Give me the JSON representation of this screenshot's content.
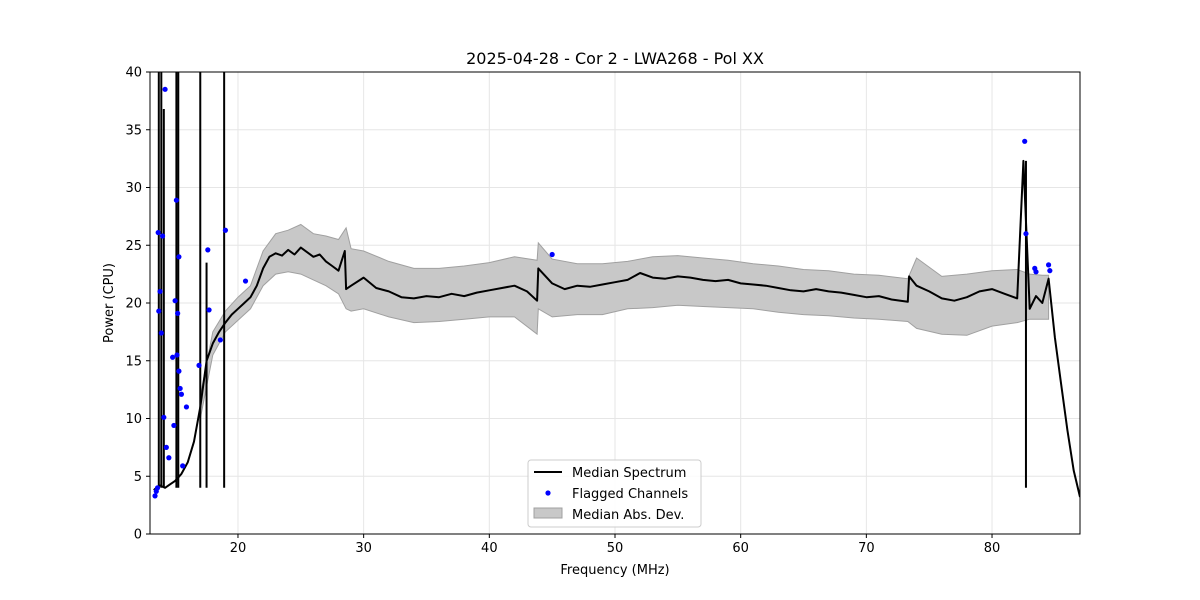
{
  "chart_data": {
    "type": "line",
    "title": "2025-04-28 - Cor 2 - LWA268 - Pol XX",
    "xlabel": "Frequency (MHz)",
    "ylabel": "Power (CPU)",
    "xlim": [
      13,
      87
    ],
    "ylim": [
      0,
      40
    ],
    "xticks": [
      20,
      30,
      40,
      50,
      60,
      70,
      80
    ],
    "yticks": [
      0,
      5,
      10,
      15,
      20,
      25,
      30,
      35,
      40
    ],
    "grid": true,
    "legend_position": "bottom-center",
    "legend": [
      "Median Spectrum",
      "Flagged Channels",
      "Median Abs. Dev."
    ],
    "colors": {
      "median": "#000000",
      "flagged": "#0000ff",
      "band_fill": "#c8c8c8",
      "band_edge": "#a0a0a0",
      "grid": "#e6e6e6"
    },
    "median_spectrum": {
      "x": [
        13.3,
        13.5,
        13.8,
        14.2,
        14.6,
        15.0,
        15.5,
        16.0,
        16.5,
        17.0,
        17.5,
        18.0,
        18.5,
        19.0,
        19.5,
        20.0,
        20.5,
        21.0,
        21.5,
        22.0,
        22.5,
        23.0,
        23.5,
        24.0,
        24.5,
        25.0,
        25.5,
        26.0,
        26.5,
        27.0,
        27.5,
        28.0,
        28.5,
        28.6,
        29.0,
        30.0,
        31.0,
        32.0,
        33.0,
        34.0,
        35.0,
        36.0,
        37.0,
        38.0,
        39.0,
        40.0,
        41.0,
        42.0,
        43.0,
        43.8,
        43.9,
        45.0,
        46.0,
        47.0,
        48.0,
        49.0,
        50.0,
        51.0,
        52.0,
        53.0,
        54.0,
        55.0,
        56.0,
        57.0,
        58.0,
        59.0,
        60.0,
        61.0,
        62.0,
        63.0,
        64.0,
        65.0,
        66.0,
        67.0,
        68.0,
        69.0,
        70.0,
        71.0,
        72.0,
        73.3,
        73.4,
        74.0,
        75.0,
        76.0,
        77.0,
        78.0,
        79.0,
        80.0,
        81.0,
        82.0,
        82.5,
        83.0,
        83.5,
        84.0,
        84.5,
        85.0,
        85.5,
        86.0,
        86.5,
        87.0
      ],
      "y": [
        3.8,
        4.0,
        4.2,
        4.0,
        4.3,
        4.6,
        5.2,
        6.2,
        8.0,
        11.0,
        15.0,
        16.5,
        17.5,
        18.3,
        19.0,
        19.5,
        20.0,
        20.5,
        21.5,
        23.0,
        24.0,
        24.3,
        24.1,
        24.6,
        24.2,
        24.8,
        24.4,
        24.0,
        24.2,
        23.6,
        23.2,
        22.8,
        24.5,
        21.2,
        21.5,
        22.2,
        21.3,
        21.0,
        20.5,
        20.4,
        20.6,
        20.5,
        20.8,
        20.6,
        20.9,
        21.1,
        21.3,
        21.5,
        21.0,
        20.2,
        23.0,
        21.7,
        21.2,
        21.5,
        21.4,
        21.6,
        21.8,
        22.0,
        22.6,
        22.2,
        22.1,
        22.3,
        22.2,
        22.0,
        21.9,
        22.0,
        21.7,
        21.6,
        21.5,
        21.3,
        21.1,
        21.0,
        21.2,
        21.0,
        20.9,
        20.7,
        20.5,
        20.6,
        20.3,
        20.1,
        22.3,
        21.5,
        21.0,
        20.4,
        20.2,
        20.5,
        21.0,
        21.2,
        20.8,
        20.4,
        32.3,
        19.5,
        20.6,
        20.0,
        22.1,
        17.0,
        13.0,
        9.0,
        5.5,
        3.2
      ]
    },
    "mad_band": {
      "x": [
        17.0,
        18.0,
        19.0,
        20.0,
        21.0,
        22.0,
        23.0,
        24.0,
        25.0,
        26.0,
        27.0,
        28.0,
        28.6,
        29.0,
        30.0,
        32.0,
        34.0,
        36.0,
        38.0,
        40.0,
        42.0,
        43.8,
        43.9,
        45.0,
        47.0,
        49.0,
        51.0,
        53.0,
        55.0,
        57.0,
        59.0,
        61.0,
        63.0,
        65.0,
        67.0,
        69.0,
        71.0,
        73.3,
        74.0,
        76.0,
        78.0,
        80.0,
        82.0,
        83.0,
        84.0,
        84.5
      ],
      "upper": [
        12.0,
        17.5,
        19.3,
        20.5,
        21.5,
        24.5,
        26.0,
        26.3,
        26.8,
        26.0,
        25.8,
        25.5,
        26.5,
        24.7,
        24.5,
        23.6,
        23.0,
        23.0,
        23.2,
        23.5,
        24.0,
        23.7,
        25.2,
        23.8,
        23.4,
        23.4,
        23.6,
        24.0,
        24.1,
        23.9,
        23.7,
        23.4,
        23.2,
        22.9,
        22.8,
        22.5,
        22.4,
        22.1,
        23.9,
        22.3,
        22.5,
        22.8,
        22.9,
        22.5,
        22.4,
        22.4
      ],
      "lower": [
        10.0,
        15.5,
        17.5,
        18.5,
        19.5,
        21.5,
        22.5,
        22.7,
        22.5,
        22.0,
        21.5,
        20.8,
        19.5,
        19.3,
        19.5,
        18.8,
        18.3,
        18.4,
        18.6,
        18.8,
        18.8,
        17.3,
        19.5,
        18.8,
        19.0,
        19.0,
        19.5,
        19.6,
        19.8,
        19.7,
        19.6,
        19.5,
        19.2,
        19.0,
        18.9,
        18.7,
        18.6,
        18.4,
        17.8,
        17.3,
        17.2,
        18.0,
        18.3,
        18.6,
        18.6,
        18.6
      ]
    },
    "spikes": [
      {
        "x": 13.7,
        "y": 40
      },
      {
        "x": 13.9,
        "y": 40
      },
      {
        "x": 14.1,
        "y": 36.8
      },
      {
        "x": 15.1,
        "y": 40
      },
      {
        "x": 15.25,
        "y": 40
      },
      {
        "x": 17.0,
        "y": 40
      },
      {
        "x": 17.5,
        "y": 23.5
      },
      {
        "x": 18.9,
        "y": 40
      },
      {
        "x": 82.7,
        "y": 32.3
      }
    ],
    "flagged_channels": {
      "x": [
        13.4,
        13.5,
        13.6,
        13.65,
        13.7,
        13.8,
        13.9,
        14.0,
        14.1,
        14.2,
        14.3,
        14.5,
        14.8,
        14.9,
        15.0,
        15.1,
        15.15,
        15.2,
        15.3,
        15.3,
        15.4,
        15.5,
        15.6,
        15.9,
        16.9,
        17.6,
        17.7,
        18.6,
        19.0,
        20.6,
        45.0,
        82.6,
        82.7,
        83.4,
        83.5,
        84.5,
        84.6
      ],
      "y": [
        3.3,
        3.7,
        4.0,
        26.1,
        19.3,
        21.0,
        17.4,
        25.8,
        10.1,
        38.5,
        7.5,
        6.6,
        15.3,
        9.4,
        20.2,
        28.9,
        15.5,
        19.1,
        24.0,
        14.1,
        12.6,
        12.1,
        5.9,
        11.0,
        14.6,
        24.6,
        19.4,
        16.8,
        26.3,
        21.9,
        24.2,
        34.0,
        26.0,
        23.0,
        22.7,
        23.3,
        22.8
      ]
    }
  }
}
